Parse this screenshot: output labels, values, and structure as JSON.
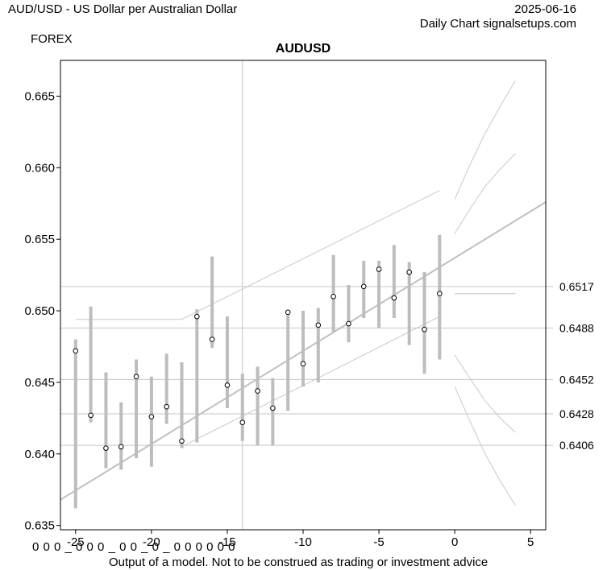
{
  "header": {
    "symbol_description": "AUD/USD - US Dollar per Australian Dollar",
    "date": "2025-06-16",
    "source": "Daily Chart signalsetups.com",
    "category": "FOREX"
  },
  "footer": {
    "codes": "0 0 0 _ 0 0 0 _ 0 0 _ 0 _ 0 0 0 0 0 0",
    "disclaimer": "Output of a model. Not to be construed as trading or investment advice"
  },
  "chart_data": {
    "type": "scatter",
    "title": "AUDUSD",
    "xlim": [
      -26,
      6
    ],
    "ylim": [
      0.6347,
      0.6675
    ],
    "x_ticks": [
      -25,
      -20,
      -15,
      -10,
      -5,
      0,
      5
    ],
    "y_ticks": [
      0.635,
      0.64,
      0.645,
      0.65,
      0.655,
      0.66,
      0.665
    ],
    "right_axis_levels": [
      0.6517,
      0.6488,
      0.6452,
      0.6428,
      0.6406
    ],
    "vertical_marker_x": -14,
    "bars": [
      {
        "x": -25,
        "low": 0.6362,
        "high": 0.648,
        "close": 0.6472
      },
      {
        "x": -24,
        "low": 0.6422,
        "high": 0.6503,
        "close": 0.6427
      },
      {
        "x": -23,
        "low": 0.639,
        "high": 0.6457,
        "close": 0.6404
      },
      {
        "x": -22,
        "low": 0.6389,
        "high": 0.6436,
        "close": 0.6405
      },
      {
        "x": -21,
        "low": 0.6397,
        "high": 0.6466,
        "close": 0.6454
      },
      {
        "x": -20,
        "low": 0.6391,
        "high": 0.6454,
        "close": 0.6426
      },
      {
        "x": -19,
        "low": 0.6421,
        "high": 0.647,
        "close": 0.6433
      },
      {
        "x": -18,
        "low": 0.6404,
        "high": 0.6464,
        "close": 0.6409
      },
      {
        "x": -17,
        "low": 0.6408,
        "high": 0.6501,
        "close": 0.6496
      },
      {
        "x": -16,
        "low": 0.6474,
        "high": 0.6538,
        "close": 0.648
      },
      {
        "x": -15,
        "low": 0.6432,
        "high": 0.6496,
        "close": 0.6448
      },
      {
        "x": -14,
        "low": 0.6409,
        "high": 0.6456,
        "close": 0.6422
      },
      {
        "x": -13,
        "low": 0.6406,
        "high": 0.6461,
        "close": 0.6444
      },
      {
        "x": -12,
        "low": 0.6406,
        "high": 0.6453,
        "close": 0.6432
      },
      {
        "x": -11,
        "low": 0.643,
        "high": 0.65,
        "close": 0.6499
      },
      {
        "x": -10,
        "low": 0.6447,
        "high": 0.65,
        "close": 0.6463
      },
      {
        "x": -9,
        "low": 0.645,
        "high": 0.6502,
        "close": 0.649
      },
      {
        "x": -8,
        "low": 0.6485,
        "high": 0.6539,
        "close": 0.651
      },
      {
        "x": -7,
        "low": 0.6478,
        "high": 0.6518,
        "close": 0.6491
      },
      {
        "x": -6,
        "low": 0.6495,
        "high": 0.6535,
        "close": 0.6517
      },
      {
        "x": -5,
        "low": 0.6488,
        "high": 0.6535,
        "close": 0.6529
      },
      {
        "x": -4,
        "low": 0.6495,
        "high": 0.6546,
        "close": 0.6509
      },
      {
        "x": -3,
        "low": 0.6476,
        "high": 0.6534,
        "close": 0.6527
      },
      {
        "x": -2,
        "low": 0.6456,
        "high": 0.6527,
        "close": 0.6487
      },
      {
        "x": -1,
        "low": 0.6466,
        "high": 0.6553,
        "close": 0.6512
      }
    ],
    "trend_line": {
      "x": [
        -26,
        6
      ],
      "y": [
        0.6368,
        0.6576
      ]
    },
    "upper_channel": {
      "x": [
        -25,
        -18,
        -1
      ],
      "y": [
        0.6494,
        0.6494,
        0.6584
      ]
    },
    "lower_channel": {
      "x": [
        -18,
        -1
      ],
      "y": [
        0.6405,
        0.6496
      ]
    },
    "forecast_level": {
      "x": [
        0,
        4
      ],
      "y": [
        0.6512,
        0.6512
      ]
    },
    "forecast_bands": [
      {
        "x": [
          0,
          1,
          2,
          3,
          4
        ],
        "y": [
          0.6578,
          0.6602,
          0.6624,
          0.6643,
          0.6661
        ]
      },
      {
        "x": [
          0,
          1,
          2,
          3,
          4
        ],
        "y": [
          0.6554,
          0.6571,
          0.6587,
          0.6599,
          0.661
        ]
      },
      {
        "x": [
          0,
          1,
          2,
          3,
          4
        ],
        "y": [
          0.6469,
          0.6453,
          0.6437,
          0.6425,
          0.6415
        ]
      },
      {
        "x": [
          0,
          1,
          2,
          3,
          4
        ],
        "y": [
          0.6447,
          0.6423,
          0.64,
          0.6381,
          0.6364
        ]
      }
    ]
  }
}
